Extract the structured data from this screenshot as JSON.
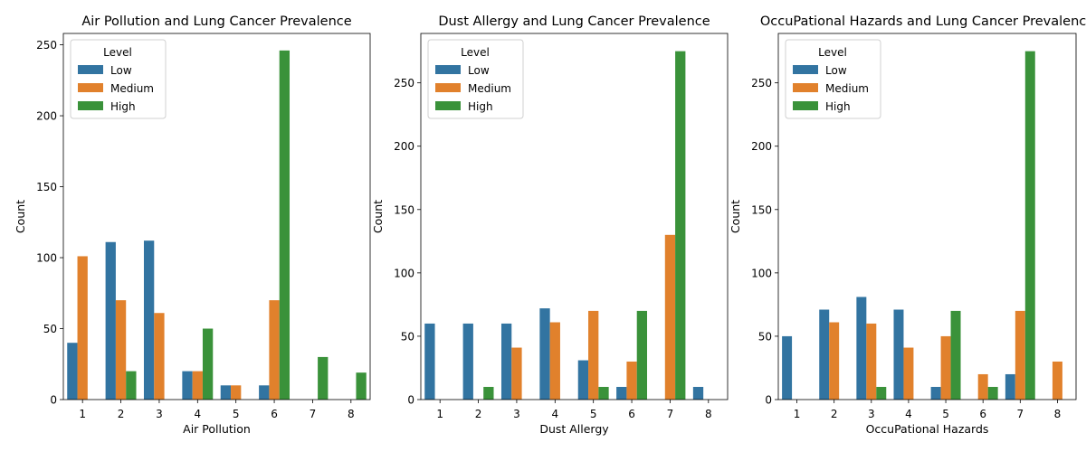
{
  "chart_data": [
    {
      "type": "bar",
      "title": "Air Pollution and Lung Cancer Prevalence",
      "xlabel": "Air Pollution",
      "ylabel": "Count",
      "categories": [
        "1",
        "2",
        "3",
        "4",
        "5",
        "6",
        "7",
        "8"
      ],
      "ylim": [
        0,
        258
      ],
      "yticks": [
        0,
        50,
        100,
        150,
        200,
        250
      ],
      "legend": {
        "title": "Level",
        "position": "top-left"
      },
      "series": [
        {
          "name": "Low",
          "color": "#3274a1",
          "values": [
            40,
            111,
            112,
            20,
            10,
            10,
            0,
            0
          ]
        },
        {
          "name": "Medium",
          "color": "#e1812c",
          "values": [
            101,
            70,
            61,
            20,
            10,
            70,
            0,
            0
          ]
        },
        {
          "name": "High",
          "color": "#3a923a",
          "values": [
            0,
            20,
            0,
            50,
            0,
            246,
            30,
            19
          ]
        }
      ]
    },
    {
      "type": "bar",
      "title": "Dust Allergy and Lung Cancer Prevalence",
      "xlabel": "Dust Allergy",
      "ylabel": "Count",
      "categories": [
        "1",
        "2",
        "3",
        "4",
        "5",
        "6",
        "7",
        "8"
      ],
      "ylim": [
        0,
        289
      ],
      "yticks": [
        0,
        50,
        100,
        150,
        200,
        250
      ],
      "legend": {
        "title": "Level",
        "position": "top-left"
      },
      "series": [
        {
          "name": "Low",
          "color": "#3274a1",
          "values": [
            60,
            60,
            60,
            72,
            31,
            10,
            0,
            10
          ]
        },
        {
          "name": "Medium",
          "color": "#e1812c",
          "values": [
            0,
            0,
            41,
            61,
            70,
            30,
            130,
            0
          ]
        },
        {
          "name": "High",
          "color": "#3a923a",
          "values": [
            0,
            10,
            0,
            0,
            10,
            70,
            275,
            0
          ]
        }
      ]
    },
    {
      "type": "bar",
      "title": "OccuPational Hazards and Lung Cancer Prevalence",
      "xlabel": "OccuPational Hazards",
      "ylabel": "Count",
      "categories": [
        "1",
        "2",
        "3",
        "4",
        "5",
        "6",
        "7",
        "8"
      ],
      "ylim": [
        0,
        289
      ],
      "yticks": [
        0,
        50,
        100,
        150,
        200,
        250
      ],
      "legend": {
        "title": "Level",
        "position": "top-left"
      },
      "series": [
        {
          "name": "Low",
          "color": "#3274a1",
          "values": [
            50,
            71,
            81,
            71,
            10,
            0,
            20,
            0
          ]
        },
        {
          "name": "Medium",
          "color": "#e1812c",
          "values": [
            0,
            61,
            60,
            41,
            50,
            20,
            70,
            30
          ]
        },
        {
          "name": "High",
          "color": "#3a923a",
          "values": [
            0,
            0,
            10,
            0,
            70,
            10,
            275,
            0
          ]
        }
      ]
    }
  ]
}
